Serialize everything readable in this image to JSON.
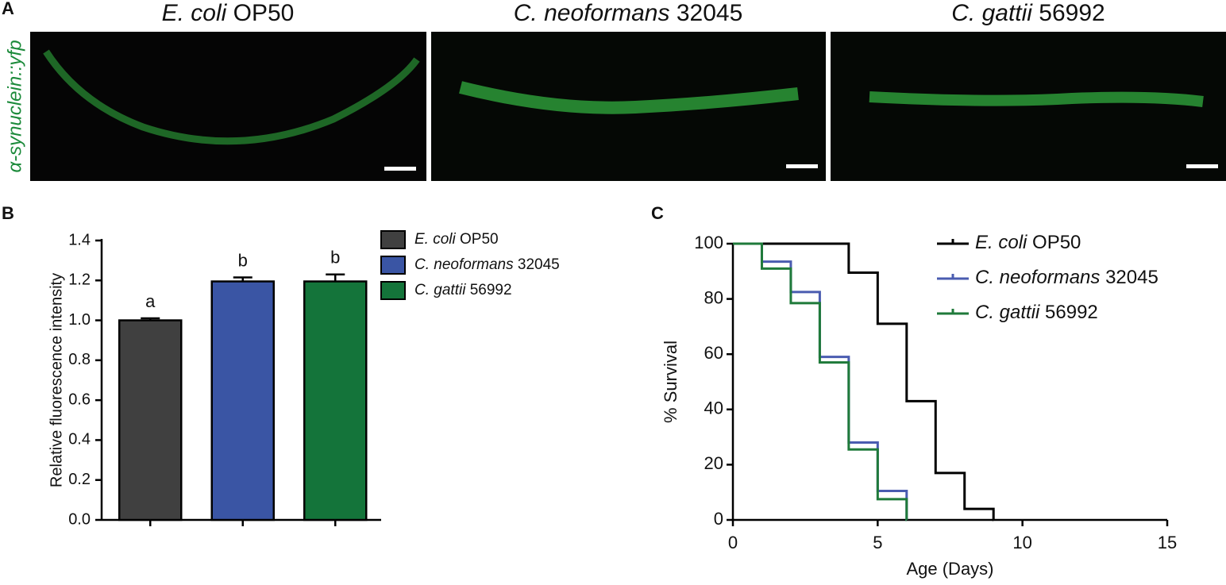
{
  "panels": {
    "a": {
      "letter": "A",
      "side_label": "α-synuclein::yfp",
      "images": [
        "E. coli OP50",
        "C. neoformans 32045",
        "C. gattii 56992"
      ]
    },
    "b": {
      "letter": "B"
    },
    "c": {
      "letter": "C"
    }
  },
  "chart_data": [
    {
      "type": "bar",
      "ylabel": "Relative fluorescence intensity",
      "categories": [
        null,
        null,
        null
      ],
      "series": [
        {
          "name": "E. coli OP50",
          "color": "#404040",
          "values": [
            1.0,
            null,
            null
          ],
          "errors": [
            0.01,
            null,
            null
          ],
          "annotations": [
            "a",
            null,
            null
          ]
        },
        {
          "name": "C. neoformans 32045",
          "color": "#3a55a4",
          "values": [
            null,
            1.195,
            null
          ],
          "errors": [
            null,
            0.02,
            null
          ],
          "annotations": [
            null,
            "b",
            null
          ]
        },
        {
          "name": "C. gattii 56992",
          "color": "#14743a",
          "values": [
            null,
            null,
            1.195
          ],
          "errors": [
            null,
            null,
            0.035
          ],
          "annotations": [
            null,
            null,
            "b"
          ]
        }
      ],
      "ylim": [
        0,
        1.4
      ],
      "yticks": [
        {
          "value": 0,
          "label": "0.0"
        },
        0.2,
        0.4,
        0.6,
        0.8,
        {
          "value": 1,
          "label": "1.0"
        },
        1.2,
        1.4
      ],
      "legend": "right"
    },
    {
      "type": "step",
      "xlabel": "Age (Days)",
      "ylabel": "% Survival",
      "series": [
        {
          "name": "E. coli OP50",
          "color": "#000000",
          "x": [
            0,
            4,
            5,
            6,
            7,
            8,
            9
          ],
          "values": [
            100,
            89.5,
            71,
            43,
            17,
            4,
            0
          ]
        },
        {
          "name": "C. neoformans 32045",
          "color": "#4a5cb0",
          "x": [
            0,
            1,
            2,
            3,
            4,
            5,
            6
          ],
          "values": [
            100,
            93.5,
            82.5,
            59,
            28,
            10.5,
            0
          ]
        },
        {
          "name": "C. gattii 56992",
          "color": "#1f7a3a",
          "x": [
            0,
            1,
            2,
            3,
            4,
            5,
            6
          ],
          "values": [
            100,
            91,
            78.5,
            57,
            25.5,
            7.5,
            0
          ]
        }
      ],
      "xlim": [
        0,
        15
      ],
      "xticks": [
        0,
        5,
        10,
        15
      ],
      "ylim": [
        0,
        100
      ],
      "yticks": [
        0,
        20,
        40,
        60,
        80,
        100
      ],
      "legend": "upper right"
    }
  ]
}
